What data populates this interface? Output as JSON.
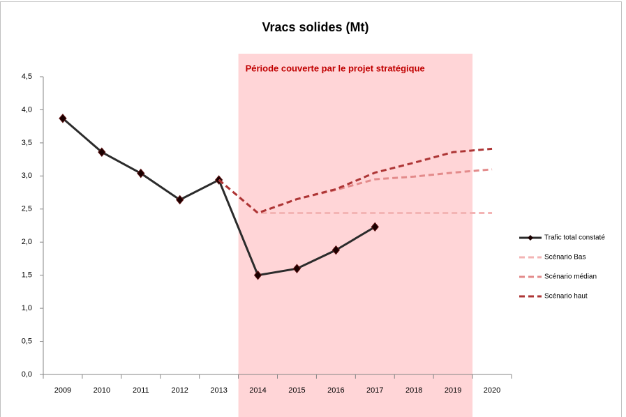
{
  "chart_data": {
    "type": "line",
    "title": "Vracs solides  (Mt)",
    "categories": [
      "2009",
      "2010",
      "2011",
      "2012",
      "2013",
      "2014",
      "2015",
      "2016",
      "2017",
      "2018",
      "2019",
      "2020"
    ],
    "ylim": [
      0,
      4.5
    ],
    "yticks": [
      {
        "value": 0,
        "label": "0,0"
      },
      {
        "value": 0.5,
        "label": "0,5"
      },
      {
        "value": 1,
        "label": "1,0"
      },
      {
        "value": 1.5,
        "label": "1,5"
      },
      {
        "value": 2,
        "label": "2,0"
      },
      {
        "value": 2.5,
        "label": "2,5"
      },
      {
        "value": 3,
        "label": "3,0"
      },
      {
        "value": 3.5,
        "label": "3,5"
      },
      {
        "value": 4,
        "label": "4,0"
      },
      {
        "value": 4.5,
        "label": "4,5"
      }
    ],
    "highlight": {
      "label": "Période couverte par le projet stratégique",
      "from": "2014",
      "to": "2019",
      "color": "#ffd5d7"
    },
    "series": [
      {
        "name": "Trafic total constaté",
        "color": "#2b2b2b",
        "dashed": false,
        "markers": true,
        "values": [
          3.87,
          3.36,
          3.04,
          2.64,
          2.94,
          1.5,
          1.6,
          1.88,
          2.23,
          null,
          null,
          null
        ]
      },
      {
        "name": "Scénario Bas",
        "color": "#f3b4b4",
        "dashed": true,
        "markers": false,
        "values": [
          null,
          null,
          null,
          null,
          2.94,
          2.44,
          2.44,
          2.44,
          2.44,
          2.44,
          2.44,
          2.44
        ]
      },
      {
        "name": "Scénario médian",
        "color": "#e38b8b",
        "dashed": true,
        "markers": false,
        "values": [
          null,
          null,
          null,
          null,
          2.94,
          2.44,
          2.65,
          2.79,
          2.95,
          2.99,
          3.05,
          3.1
        ]
      },
      {
        "name": "Scénario haut",
        "color": "#ad3535",
        "dashed": true,
        "markers": false,
        "values": [
          null,
          null,
          null,
          null,
          2.94,
          2.44,
          2.65,
          2.8,
          3.05,
          3.2,
          3.36,
          3.41
        ]
      }
    ]
  }
}
